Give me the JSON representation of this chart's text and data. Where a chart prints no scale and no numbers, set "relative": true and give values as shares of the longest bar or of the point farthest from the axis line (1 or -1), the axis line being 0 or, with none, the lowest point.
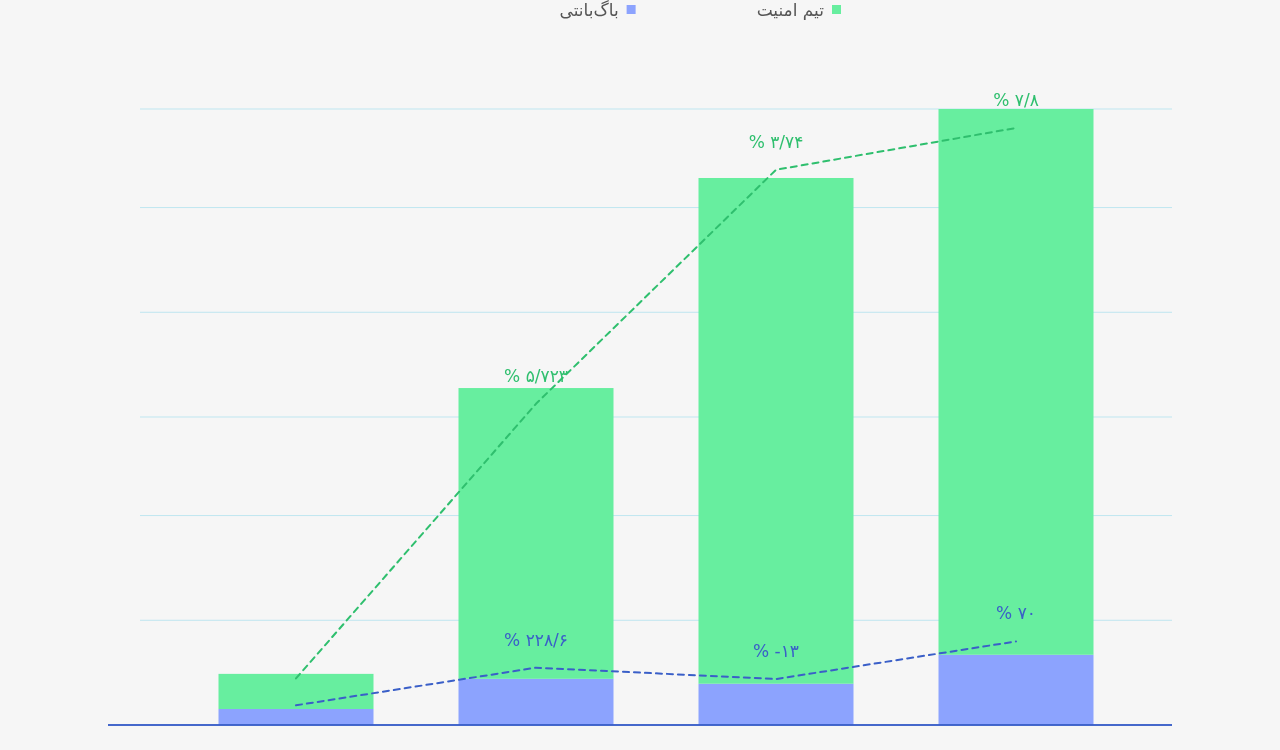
{
  "chart_data": [
    {
      "type": "bar",
      "stacked": true,
      "relative": true,
      "legend": "top",
      "categories": [
        null,
        null,
        null,
        null
      ],
      "ref_lines": [
        {
          "axis": "y",
          "value": 0.17,
          "color": "#bfe6f0"
        },
        {
          "axis": "y",
          "value": 0.34,
          "color": "#bfe6f0"
        },
        {
          "axis": "y",
          "value": 0.5,
          "color": "#bfe6f0"
        },
        {
          "axis": "y",
          "value": 0.67,
          "color": "#bfe6f0"
        },
        {
          "axis": "y",
          "value": 0.84,
          "color": "#bfe6f0"
        },
        {
          "axis": "y",
          "value": 1,
          "color": "#bfe6f0"
        }
      ],
      "series": [
        {
          "name": "باگ‌بانتی",
          "color": "#8ca3fe",
          "values": [
            0.026,
            0.075,
            0.067,
            0.114
          ]
        },
        {
          "name": "تیم امنیت",
          "color": "#67ee9f",
          "values": [
            0.057,
            0.472,
            0.821,
            0.886
          ]
        }
      ]
    },
    {
      "type": "line",
      "relative": true,
      "line_style": "dashed",
      "marker": "none",
      "categories": [
        null,
        null,
        null,
        null
      ],
      "series": [
        {
          "color": "#2fbf6e",
          "values": [
            0.078,
            0.538,
            0.93,
            1
          ]
        },
        {
          "color": "#3a5fc8",
          "values": [
            0.033,
            0.096,
            0.077,
            0.14
          ]
        }
      ],
      "annotations": [
        {
          "text": "% ۵/۷۲۳",
          "y": 0.538
        },
        {
          "text": "% ۳/۷۴",
          "y": 0.93
        },
        {
          "text": "% ۷/۸",
          "y": 1
        },
        {
          "text": "% ۲۲۸/۶",
          "y": 0.096
        },
        {
          "text": "% -۱۳",
          "y": 0.077
        },
        {
          "text": "% ۷۰",
          "y": 0.14
        }
      ]
    }
  ]
}
